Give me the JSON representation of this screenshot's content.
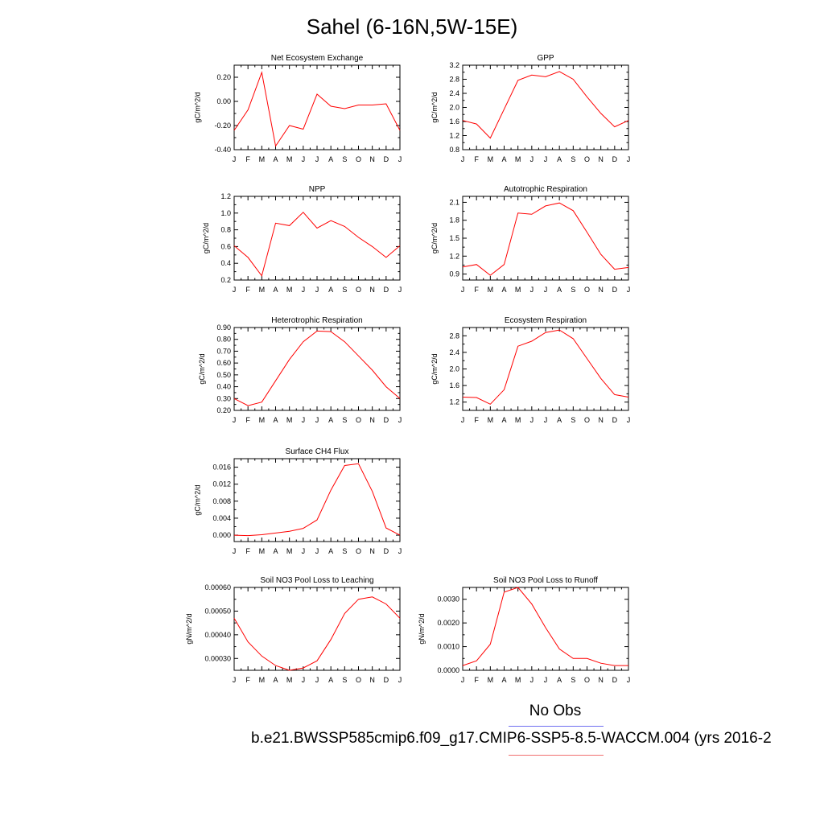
{
  "title": "Sahel (6-16N,5W-15E)",
  "legend": {
    "obs_label": "No Obs",
    "case_label": "b.e21.BWSSP585cmip6.f09_g17.CMIP6-SSP5-8.5-WACCM.004 (yrs 2016-2",
    "obs_color": "#6e6ef0",
    "case_color": "#f07070"
  },
  "chart_data": [
    {
      "type": "line",
      "title": "Net Ecosystem Exchange",
      "ylabel": "gC/m^2/d",
      "categories": [
        "J",
        "F",
        "M",
        "A",
        "M",
        "J",
        "J",
        "A",
        "S",
        "O",
        "N",
        "D",
        "J"
      ],
      "ylim": [
        -0.4,
        0.3
      ],
      "yticks": [
        "0.20",
        "0.00",
        "-0.20",
        "-0.40"
      ],
      "ytick_values": [
        0.2,
        0.0,
        -0.2,
        -0.4
      ],
      "series": [
        {
          "values": [
            -0.24,
            -0.07,
            0.24,
            -0.37,
            -0.2,
            -0.23,
            0.06,
            -0.04,
            -0.06,
            -0.03,
            -0.03,
            -0.02,
            -0.24
          ],
          "color": "#ff0000"
        }
      ]
    },
    {
      "type": "line",
      "title": "GPP",
      "ylabel": "gC/m^2/d",
      "categories": [
        "J",
        "F",
        "M",
        "A",
        "M",
        "J",
        "J",
        "A",
        "S",
        "O",
        "N",
        "D",
        "J"
      ],
      "ylim": [
        0.8,
        3.2
      ],
      "yticks": [
        "3.2",
        "2.8",
        "2.4",
        "2.0",
        "1.6",
        "1.2",
        "0.8"
      ],
      "ytick_values": [
        3.2,
        2.8,
        2.4,
        2.0,
        1.6,
        1.2,
        0.8
      ],
      "series": [
        {
          "values": [
            1.63,
            1.53,
            1.13,
            1.95,
            2.77,
            2.92,
            2.87,
            3.02,
            2.8,
            2.3,
            1.83,
            1.45,
            1.63
          ],
          "color": "#ff0000"
        }
      ]
    },
    {
      "type": "line",
      "title": "NPP",
      "ylabel": "gC/m^2/d",
      "categories": [
        "J",
        "F",
        "M",
        "A",
        "M",
        "J",
        "J",
        "A",
        "S",
        "O",
        "N",
        "D",
        "J"
      ],
      "ylim": [
        0.2,
        1.2
      ],
      "yticks": [
        "1.2",
        "1.0",
        "0.8",
        "0.6",
        "0.4",
        "0.2"
      ],
      "ytick_values": [
        1.2,
        1.0,
        0.8,
        0.6,
        0.4,
        0.2
      ],
      "series": [
        {
          "values": [
            0.61,
            0.47,
            0.25,
            0.88,
            0.85,
            1.01,
            0.82,
            0.91,
            0.84,
            0.71,
            0.6,
            0.47,
            0.61
          ],
          "color": "#ff0000"
        }
      ]
    },
    {
      "type": "line",
      "title": "Autotrophic Respiration",
      "ylabel": "gC/m^2/d",
      "categories": [
        "J",
        "F",
        "M",
        "A",
        "M",
        "J",
        "J",
        "A",
        "S",
        "O",
        "N",
        "D",
        "J"
      ],
      "ylim": [
        0.8,
        2.2
      ],
      "yticks": [
        "2.1",
        "1.8",
        "1.5",
        "1.2",
        "0.9"
      ],
      "ytick_values": [
        2.1,
        1.8,
        1.5,
        1.2,
        0.9
      ],
      "series": [
        {
          "values": [
            1.02,
            1.06,
            0.88,
            1.06,
            1.92,
            1.9,
            2.04,
            2.09,
            1.96,
            1.6,
            1.23,
            0.98,
            1.01
          ],
          "color": "#ff0000"
        }
      ]
    },
    {
      "type": "line",
      "title": "Heterotrophic Respiration",
      "ylabel": "gC/m^2/d",
      "categories": [
        "J",
        "F",
        "M",
        "A",
        "M",
        "J",
        "J",
        "A",
        "S",
        "O",
        "N",
        "D",
        "J"
      ],
      "ylim": [
        0.2,
        0.9
      ],
      "yticks": [
        "0.90",
        "0.80",
        "0.70",
        "0.60",
        "0.50",
        "0.40",
        "0.30",
        "0.20"
      ],
      "ytick_values": [
        0.9,
        0.8,
        0.7,
        0.6,
        0.5,
        0.4,
        0.3,
        0.2
      ],
      "series": [
        {
          "values": [
            0.3,
            0.24,
            0.27,
            0.45,
            0.63,
            0.78,
            0.87,
            0.865,
            0.78,
            0.66,
            0.54,
            0.4,
            0.3
          ],
          "color": "#ff0000"
        }
      ]
    },
    {
      "type": "line",
      "title": "Ecosystem Respiration",
      "ylabel": "gC/m^2/d",
      "categories": [
        "J",
        "F",
        "M",
        "A",
        "M",
        "J",
        "J",
        "A",
        "S",
        "O",
        "N",
        "D",
        "J"
      ],
      "ylim": [
        1.0,
        3.0
      ],
      "yticks": [
        "2.8",
        "2.4",
        "2.0",
        "1.6",
        "1.2"
      ],
      "ytick_values": [
        2.8,
        2.4,
        2.0,
        1.6,
        1.2
      ],
      "series": [
        {
          "values": [
            1.32,
            1.31,
            1.15,
            1.5,
            2.55,
            2.67,
            2.88,
            2.94,
            2.73,
            2.25,
            1.77,
            1.38,
            1.32
          ],
          "color": "#ff0000"
        }
      ]
    },
    {
      "type": "line",
      "title": "Surface CH4 Flux",
      "ylabel": "gC/m^2/d",
      "categories": [
        "J",
        "F",
        "M",
        "A",
        "M",
        "J",
        "J",
        "A",
        "S",
        "O",
        "N",
        "D",
        "J"
      ],
      "ylim": [
        -0.0015,
        0.018
      ],
      "yticks": [
        "0.016",
        "0.012",
        "0.008",
        "0.004",
        "0.000"
      ],
      "ytick_values": [
        0.016,
        0.012,
        0.008,
        0.004,
        0.0
      ],
      "series": [
        {
          "values": [
            0.0,
            -0.0001,
            0.0001,
            0.0005,
            0.0009,
            0.0016,
            0.0036,
            0.0106,
            0.0164,
            0.0168,
            0.0103,
            0.0017,
            0.0
          ],
          "color": "#ff0000"
        }
      ]
    },
    {
      "type": "line",
      "title": "Soil NO3 Pool Loss to Leaching",
      "ylabel": "gN/m^2/d",
      "categories": [
        "J",
        "F",
        "M",
        "A",
        "M",
        "J",
        "J",
        "A",
        "S",
        "O",
        "N",
        "D",
        "J"
      ],
      "ylim": [
        0.00025,
        0.0006
      ],
      "yticks": [
        "0.00060",
        "0.00050",
        "0.00040",
        "0.00030"
      ],
      "ytick_values": [
        0.0006,
        0.0005,
        0.0004,
        0.0003
      ],
      "series": [
        {
          "values": [
            0.00047,
            0.00037,
            0.00031,
            0.00027,
            0.00025,
            0.00026,
            0.00029,
            0.00038,
            0.00049,
            0.00055,
            0.00056,
            0.00053,
            0.00047
          ],
          "color": "#ff0000"
        }
      ]
    },
    {
      "type": "line",
      "title": "Soil NO3 Pool Loss to Runoff",
      "ylabel": "gN/m^2/d",
      "categories": [
        "J",
        "F",
        "M",
        "A",
        "M",
        "J",
        "J",
        "A",
        "S",
        "O",
        "N",
        "D",
        "J"
      ],
      "ylim": [
        0.0,
        0.0035
      ],
      "yticks": [
        "0.0030",
        "0.0020",
        "0.0010",
        "0.0000"
      ],
      "ytick_values": [
        0.003,
        0.002,
        0.001,
        0.0
      ],
      "series": [
        {
          "values": [
            0.0002,
            0.0004,
            0.0011,
            0.0033,
            0.0035,
            0.0028,
            0.0018,
            0.0009,
            0.0005,
            0.0005,
            0.0003,
            0.0002,
            0.0002
          ],
          "color": "#ff0000"
        }
      ]
    }
  ]
}
